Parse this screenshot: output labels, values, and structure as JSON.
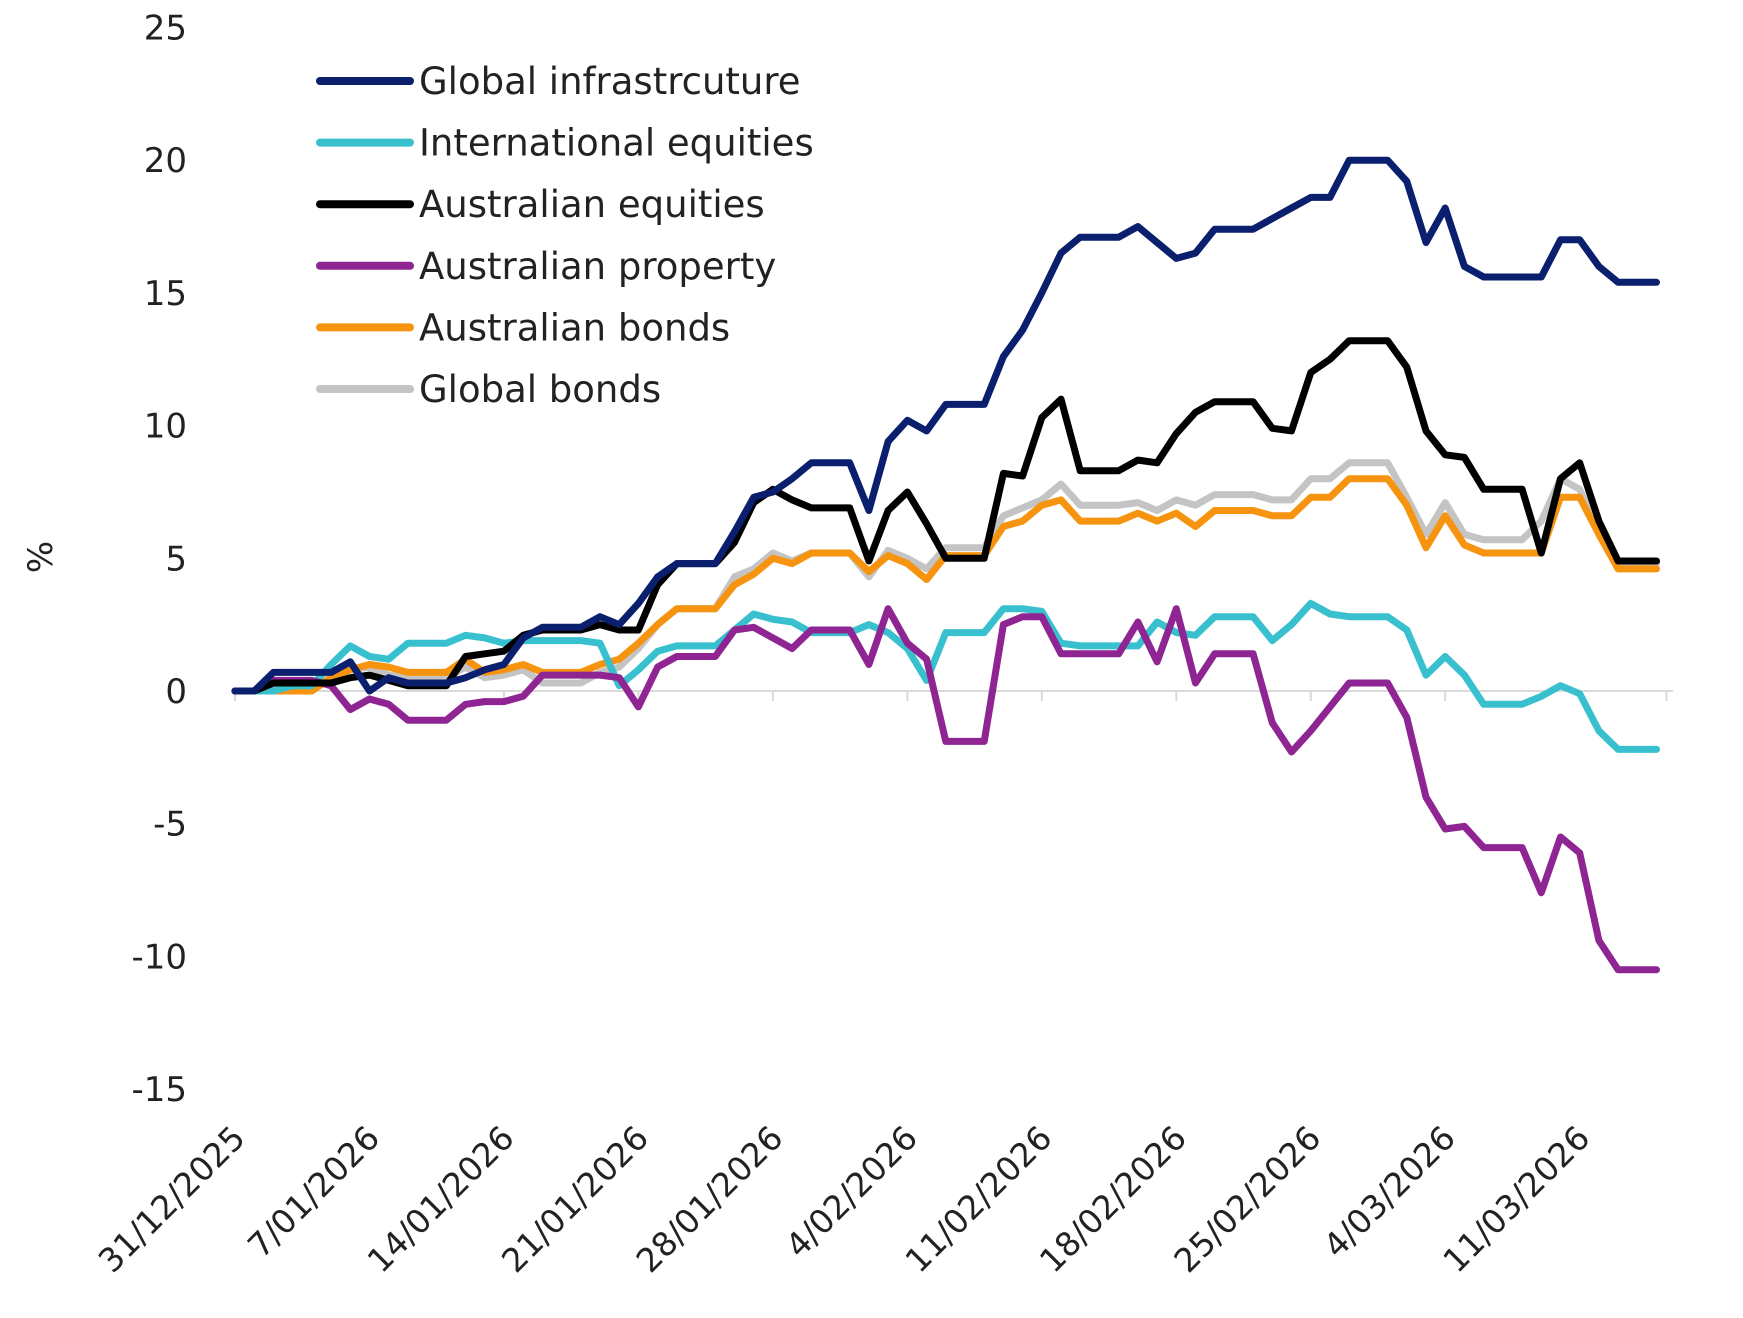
{
  "chart_data": {
    "type": "line",
    "title": "",
    "xlabel": "",
    "ylabel": "%",
    "ylim": [
      -15,
      25
    ],
    "yticks": [
      -15,
      -10,
      -5,
      0,
      5,
      10,
      15,
      20,
      25
    ],
    "xtick_labels": [
      "31/12/2025",
      "7/01/2026",
      "14/01/2026",
      "21/01/2026",
      "28/01/2026",
      "4/02/2026",
      "11/02/2026",
      "18/02/2026",
      "25/02/2026",
      "4/03/2026",
      "11/03/2026"
    ],
    "grid": false,
    "legend_position": "top-left",
    "x": [
      "31/12/2025",
      "1/01/2026",
      "2/01/2026",
      "3/01/2026",
      "4/01/2026",
      "5/01/2026",
      "6/01/2026",
      "7/01/2026",
      "8/01/2026",
      "9/01/2026",
      "10/01/2026",
      "11/01/2026",
      "12/01/2026",
      "13/01/2026",
      "14/01/2026",
      "15/01/2026",
      "16/01/2026",
      "17/01/2026",
      "18/01/2026",
      "19/01/2026",
      "20/01/2026",
      "21/01/2026",
      "22/01/2026",
      "23/01/2026",
      "24/01/2026",
      "25/01/2026",
      "26/01/2026",
      "27/01/2026",
      "28/01/2026",
      "29/01/2026",
      "30/01/2026",
      "31/01/2026",
      "1/02/2026",
      "2/02/2026",
      "3/02/2026",
      "4/02/2026",
      "5/02/2026",
      "6/02/2026",
      "7/02/2026",
      "8/02/2026",
      "9/02/2026",
      "10/02/2026",
      "11/02/2026",
      "12/02/2026",
      "13/02/2026",
      "14/02/2026",
      "15/02/2026",
      "16/02/2026",
      "17/02/2026",
      "18/02/2026",
      "19/02/2026",
      "20/02/2026",
      "21/02/2026",
      "22/02/2026",
      "23/02/2026",
      "24/02/2026",
      "25/02/2026",
      "26/02/2026",
      "27/02/2026",
      "28/02/2026",
      "1/03/2026",
      "2/03/2026",
      "3/03/2026",
      "4/03/2026",
      "5/03/2026",
      "6/03/2026",
      "7/03/2026",
      "8/03/2026",
      "9/03/2026",
      "10/03/2026",
      "11/03/2026",
      "12/03/2026",
      "13/03/2026",
      "14/03/2026",
      "15/03/2026"
    ],
    "series": [
      {
        "name": "Global infrastrcuture",
        "color": "#0a1f6e",
        "values": [
          0,
          0,
          0.7,
          0.7,
          0.7,
          0.7,
          1.1,
          0,
          0.5,
          0.3,
          0.3,
          0.3,
          0.5,
          0.8,
          1.0,
          2.0,
          2.4,
          2.4,
          2.4,
          2.8,
          2.5,
          3.3,
          4.3,
          4.8,
          4.8,
          4.8,
          6.0,
          7.3,
          7.5,
          8.0,
          8.6,
          8.6,
          8.6,
          6.8,
          9.4,
          10.2,
          9.8,
          10.8,
          10.8,
          10.8,
          12.6,
          13.6,
          15.0,
          16.5,
          17.1,
          17.1,
          17.1,
          17.5,
          16.9,
          16.3,
          16.5,
          17.4,
          17.4,
          17.4,
          17.8,
          18.2,
          18.6,
          18.6,
          20.0,
          20.0,
          20.0,
          19.2,
          16.9,
          18.2,
          16.0,
          15.6,
          15.6,
          15.6,
          15.6,
          17.0,
          17.0,
          16.0,
          15.4,
          15.4,
          15.4
        ]
      },
      {
        "name": "International equities",
        "color": "#38c0cf",
        "values": [
          0,
          0,
          0,
          0.2,
          0.2,
          1.0,
          1.7,
          1.3,
          1.2,
          1.8,
          1.8,
          1.8,
          2.1,
          2.0,
          1.8,
          1.9,
          1.9,
          1.9,
          1.9,
          1.8,
          0.2,
          0.8,
          1.5,
          1.7,
          1.7,
          1.7,
          2.3,
          2.9,
          2.7,
          2.6,
          2.2,
          2.2,
          2.2,
          2.5,
          2.2,
          1.6,
          0.4,
          2.2,
          2.2,
          2.2,
          3.1,
          3.1,
          3.0,
          1.8,
          1.7,
          1.7,
          1.7,
          1.7,
          2.6,
          2.2,
          2.1,
          2.8,
          2.8,
          2.8,
          1.9,
          2.5,
          3.3,
          2.9,
          2.8,
          2.8,
          2.8,
          2.3,
          0.6,
          1.3,
          0.6,
          -0.5,
          -0.5,
          -0.5,
          -0.2,
          0.2,
          -0.1,
          -1.5,
          -2.2,
          -2.2,
          -2.2
        ]
      },
      {
        "name": "Australian equities",
        "color": "#000000",
        "values": [
          0,
          0,
          0.3,
          0.3,
          0.3,
          0.3,
          0.5,
          0.6,
          0.4,
          0.2,
          0.2,
          0.2,
          1.3,
          1.4,
          1.5,
          2.1,
          2.3,
          2.3,
          2.3,
          2.5,
          2.3,
          2.3,
          4.0,
          4.8,
          4.8,
          4.8,
          5.6,
          7.1,
          7.6,
          7.2,
          6.9,
          6.9,
          6.9,
          4.9,
          6.8,
          7.5,
          6.3,
          5.0,
          5.0,
          5.0,
          8.2,
          8.1,
          10.3,
          11.0,
          8.3,
          8.3,
          8.3,
          8.7,
          8.6,
          9.7,
          10.5,
          10.9,
          10.9,
          10.9,
          9.9,
          9.8,
          12.0,
          12.5,
          13.2,
          13.2,
          13.2,
          12.2,
          9.8,
          8.9,
          8.8,
          7.6,
          7.6,
          7.6,
          5.2,
          8.0,
          8.6,
          6.4,
          4.9,
          4.9,
          4.9
        ]
      },
      {
        "name": "Australian property",
        "color": "#8e2593",
        "values": [
          0,
          0,
          0.4,
          0.4,
          0.4,
          0.2,
          -0.7,
          -0.3,
          -0.5,
          -1.1,
          -1.1,
          -1.1,
          -0.5,
          -0.4,
          -0.4,
          -0.2,
          0.6,
          0.6,
          0.6,
          0.6,
          0.5,
          -0.6,
          0.9,
          1.3,
          1.3,
          1.3,
          2.3,
          2.4,
          2.0,
          1.6,
          2.3,
          2.3,
          2.3,
          1.0,
          3.1,
          1.8,
          1.2,
          -1.9,
          -1.9,
          -1.9,
          2.5,
          2.8,
          2.8,
          1.4,
          1.4,
          1.4,
          1.4,
          2.6,
          1.1,
          3.1,
          0.3,
          1.4,
          1.4,
          1.4,
          -1.2,
          -2.3,
          -1.5,
          -0.6,
          0.3,
          0.3,
          0.3,
          -1.0,
          -4.0,
          -5.2,
          -5.1,
          -5.9,
          -5.9,
          -5.9,
          -7.6,
          -5.5,
          -6.1,
          -9.4,
          -10.5,
          -10.5,
          -10.5
        ]
      },
      {
        "name": "Australian bonds",
        "color": "#f7940f",
        "values": [
          0,
          0,
          0,
          0,
          0,
          0.5,
          0.8,
          1.0,
          0.9,
          0.7,
          0.7,
          0.7,
          1.2,
          0.7,
          0.8,
          1.0,
          0.7,
          0.7,
          0.7,
          1.0,
          1.2,
          1.8,
          2.5,
          3.1,
          3.1,
          3.1,
          4.0,
          4.4,
          5.0,
          4.8,
          5.2,
          5.2,
          5.2,
          4.5,
          5.1,
          4.8,
          4.2,
          5.1,
          5.1,
          5.1,
          6.2,
          6.4,
          7.0,
          7.2,
          6.4,
          6.4,
          6.4,
          6.7,
          6.4,
          6.7,
          6.2,
          6.8,
          6.8,
          6.8,
          6.6,
          6.6,
          7.3,
          7.3,
          8.0,
          8.0,
          8.0,
          7.0,
          5.4,
          6.6,
          5.5,
          5.2,
          5.2,
          5.2,
          5.2,
          7.3,
          7.3,
          5.9,
          4.6,
          4.6,
          4.6
        ]
      },
      {
        "name": "Global bonds",
        "color": "#c4c4c4",
        "values": [
          0,
          0,
          0.2,
          0.2,
          0.2,
          0.5,
          0.8,
          0.9,
          0.6,
          0.5,
          0.5,
          0.5,
          0.9,
          0.5,
          0.6,
          0.8,
          0.3,
          0.3,
          0.3,
          0.7,
          0.9,
          1.6,
          2.5,
          3.1,
          3.1,
          3.1,
          4.3,
          4.6,
          5.2,
          4.9,
          5.2,
          5.2,
          5.2,
          4.3,
          5.3,
          5.0,
          4.6,
          5.4,
          5.4,
          5.4,
          6.6,
          6.9,
          7.2,
          7.8,
          7.0,
          7.0,
          7.0,
          7.1,
          6.8,
          7.2,
          7.0,
          7.4,
          7.4,
          7.4,
          7.2,
          7.2,
          8.0,
          8.0,
          8.6,
          8.6,
          8.6,
          7.3,
          5.9,
          7.1,
          5.9,
          5.7,
          5.7,
          5.7,
          6.4,
          8.0,
          7.6,
          6.1,
          4.8,
          4.8,
          4.8
        ]
      }
    ]
  }
}
